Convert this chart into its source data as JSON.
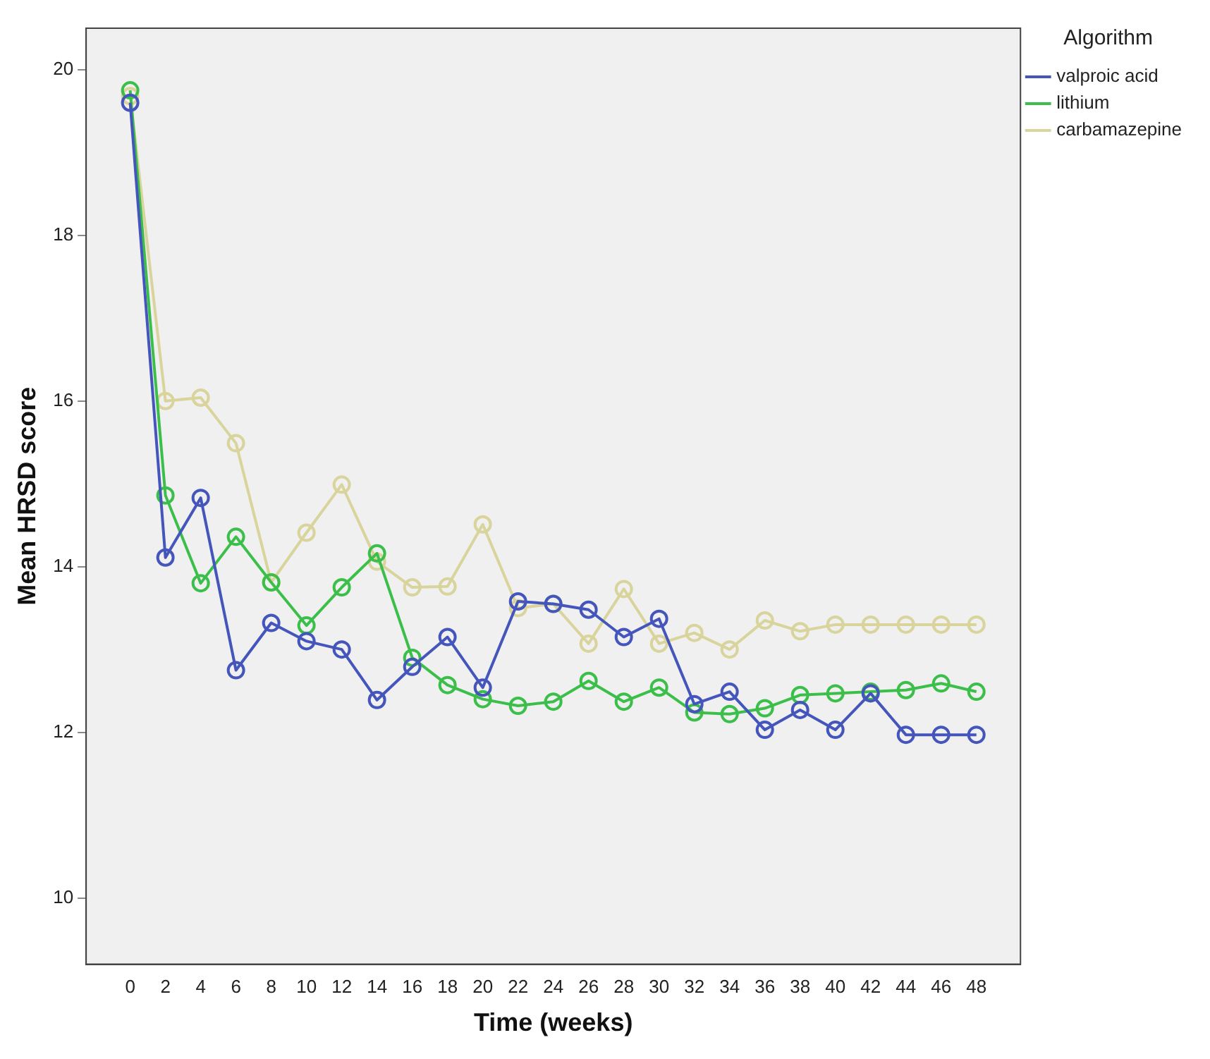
{
  "chart_data": {
    "type": "line",
    "xlabel": "Time (weeks)",
    "ylabel": "Mean HRSD score",
    "legend_title": "Algorithm",
    "legend": "top right",
    "grid": false,
    "marker": "circle",
    "line_style": "solid",
    "x": [
      0,
      2,
      4,
      6,
      8,
      10,
      12,
      14,
      16,
      18,
      20,
      22,
      24,
      26,
      28,
      30,
      32,
      34,
      36,
      38,
      40,
      42,
      44,
      46,
      48
    ],
    "xlim": [
      -2.5,
      50.5
    ],
    "xticks": [
      0,
      2,
      4,
      6,
      8,
      10,
      12,
      14,
      16,
      18,
      20,
      22,
      24,
      26,
      28,
      30,
      32,
      34,
      36,
      38,
      40,
      42,
      44,
      46,
      48
    ],
    "ylim": [
      9.2,
      20.5
    ],
    "yticks": [
      10,
      12,
      14,
      16,
      18,
      20
    ],
    "series": [
      {
        "name": "valproic acid",
        "color": "#4455bb",
        "values": [
          19.6,
          14.11,
          14.83,
          12.75,
          13.32,
          13.1,
          13.0,
          12.39,
          12.79,
          13.15,
          12.54,
          13.58,
          13.55,
          13.48,
          13.15,
          13.37,
          12.34,
          12.49,
          12.03,
          12.27,
          12.03,
          12.47,
          11.97,
          11.97,
          11.97
        ]
      },
      {
        "name": "lithium",
        "color": "#3cbf4a",
        "values": [
          19.75,
          14.86,
          13.8,
          14.36,
          13.81,
          13.29,
          13.75,
          14.16,
          12.9,
          12.57,
          12.4,
          12.32,
          12.37,
          12.62,
          12.37,
          12.54,
          12.24,
          12.22,
          12.29,
          12.45,
          12.47,
          12.49,
          12.51,
          12.59,
          12.49
        ]
      },
      {
        "name": "carbamazepine",
        "color": "#d8d49c",
        "values": [
          19.68,
          16.0,
          16.04,
          15.49,
          13.81,
          14.41,
          14.99,
          14.06,
          13.75,
          13.76,
          14.51,
          13.5,
          13.55,
          13.07,
          13.73,
          13.07,
          13.2,
          13.0,
          13.35,
          13.22,
          13.3,
          13.3,
          13.3,
          13.3,
          13.3
        ]
      }
    ]
  }
}
